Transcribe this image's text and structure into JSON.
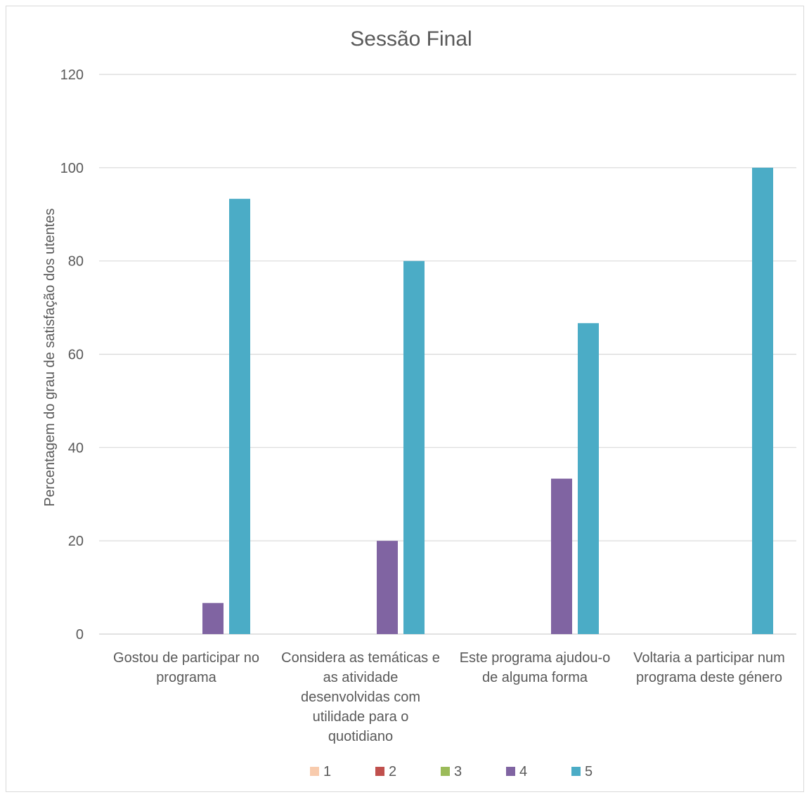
{
  "chart_data": {
    "type": "bar",
    "title": "Sessão Final",
    "xlabel": "",
    "ylabel": "Percentagem do grau de  satisfação dos utentes",
    "ylim": [
      0,
      120
    ],
    "yticks": [
      0,
      20,
      40,
      60,
      80,
      100,
      120
    ],
    "ytick_labels": [
      "0",
      "20",
      "40",
      "60",
      "80",
      "100",
      "120"
    ],
    "grid": true,
    "legend_position": "bottom",
    "categories": [
      "Gostou de participar no programa",
      "Considera as temáticas e as atividade desenvolvidas com utilidade para o quotidiano",
      "Este programa ajudou-o de alguma forma",
      "Voltaria a participar num programa deste género"
    ],
    "category_lines": [
      [
        "Gostou de participar no",
        "programa"
      ],
      [
        "Considera as temáticas e",
        "as atividade",
        "desenvolvidas com",
        "utilidade para o",
        "quotidiano"
      ],
      [
        "Este programa ajudou-o",
        "de alguma forma"
      ],
      [
        "Voltaria a participar num",
        "programa deste género"
      ]
    ],
    "series": [
      {
        "name": "1",
        "color": "#F8CBAD",
        "values": [
          0,
          0,
          0,
          0
        ]
      },
      {
        "name": "2",
        "color": "#C0504D",
        "values": [
          0,
          0,
          0,
          0
        ]
      },
      {
        "name": "3",
        "color": "#9BBB59",
        "values": [
          0,
          0,
          0,
          0
        ]
      },
      {
        "name": "4",
        "color": "#8064A2",
        "values": [
          6.67,
          20,
          33.33,
          0
        ]
      },
      {
        "name": "5",
        "color": "#4BACC6",
        "values": [
          93.33,
          80,
          66.67,
          100
        ]
      }
    ]
  }
}
